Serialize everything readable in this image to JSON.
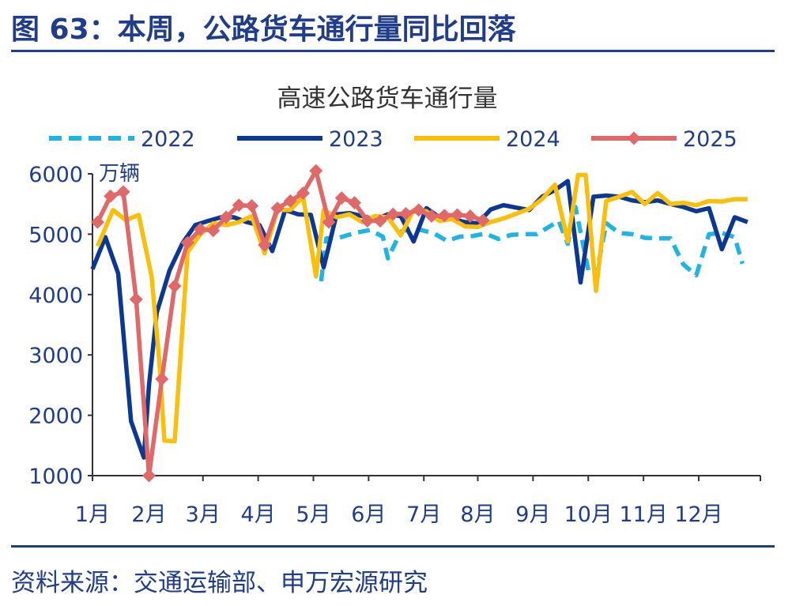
{
  "figure": {
    "title": "图 63：本周，公路货车通行量同比回落",
    "source": "资料来源：交通运输部、申万宏源研究"
  },
  "colors": {
    "frame": "#1f3d8c",
    "axis_text": "#1f3d8c",
    "s2022": "#1fb4e6",
    "s2023": "#0b3893",
    "s2024": "#fbbf0a",
    "s2025": "#e06868"
  },
  "chart_data": {
    "type": "line",
    "title": "高速公路货车通行量",
    "unit_label": "万辆",
    "xlabel": "",
    "ylabel": "",
    "ylim": [
      1000,
      6000
    ],
    "yticks": [
      1000,
      2000,
      3000,
      4000,
      5000,
      6000
    ],
    "xlim": [
      0,
      52
    ],
    "month_labels": [
      "1月",
      "2月",
      "3月",
      "4月",
      "5月",
      "6月",
      "7月",
      "8月",
      "9月",
      "10月",
      "11月",
      "12月"
    ],
    "month_positions": [
      0,
      4.4,
      8.6,
      12.9,
      17.2,
      21.5,
      25.8,
      30.0,
      34.3,
      38.6,
      42.9,
      47.2
    ],
    "grid": false,
    "legend_position": "top",
    "series": [
      {
        "name": "2022",
        "style": "dashed",
        "x": [
          17.8,
          18.2,
          19.2,
          20.4,
          21.6,
          22.6,
          23.0,
          24.0,
          24.6,
          25.6,
          26.6,
          27.6,
          28.6,
          29.6,
          30.6,
          31.6,
          32.6,
          33.6,
          34.6,
          35.6,
          36.3,
          37.0,
          37.6,
          38.6,
          39.2,
          40.0,
          41.0,
          42.0,
          43.0,
          44.0,
          45.0,
          46.0,
          47.0,
          48.0,
          49.0,
          50.0,
          50.6
        ],
        "y": [
          4220,
          4930,
          4940,
          5020,
          5070,
          4960,
          4600,
          5040,
          5080,
          5070,
          5010,
          4890,
          4960,
          4970,
          5010,
          4920,
          4990,
          5000,
          5000,
          5130,
          5220,
          4840,
          5450,
          4400,
          4300,
          5180,
          5020,
          5000,
          4940,
          4930,
          4930,
          4500,
          4320,
          5000,
          5020,
          4950,
          4510
        ]
      },
      {
        "name": "2023",
        "x": [
          0,
          1,
          2,
          3,
          4,
          4.4,
          5,
          6,
          7,
          8,
          9,
          10,
          11,
          12,
          13,
          14,
          15,
          16,
          17,
          18,
          19,
          20,
          21,
          22,
          23,
          24,
          25,
          26,
          27,
          28,
          29,
          30,
          31,
          32,
          33,
          34,
          35,
          36,
          37,
          38,
          39,
          40,
          41,
          42,
          43,
          44,
          45,
          46,
          47,
          48,
          49,
          50,
          51
        ],
        "y": [
          4420,
          4950,
          4350,
          1900,
          1300,
          2500,
          3700,
          4400,
          4850,
          5150,
          5220,
          5280,
          5280,
          5200,
          5150,
          4720,
          5400,
          5330,
          5320,
          4450,
          5330,
          5350,
          5300,
          5240,
          5330,
          5300,
          4880,
          5430,
          5280,
          5250,
          5200,
          5180,
          5410,
          5480,
          5440,
          5400,
          5620,
          5730,
          5880,
          4200,
          5620,
          5640,
          5620,
          5560,
          5530,
          5560,
          5500,
          5450,
          5380,
          5430,
          4750,
          5280,
          5200
        ]
      },
      {
        "name": "2024",
        "x": [
          0.4,
          1.6,
          2.6,
          3.6,
          4.6,
          5.2,
          5.6,
          6.4,
          7.4,
          8.4,
          9.4,
          10.4,
          11.4,
          12.4,
          13.4,
          14.4,
          15.4,
          16.4,
          17.4,
          18.0,
          19.0,
          20.0,
          21.0,
          22.0,
          23.0,
          24.0,
          25.0,
          26.0,
          27.0,
          28.0,
          29.0,
          30.0,
          31.0,
          32.0,
          33.0,
          34.0,
          35.0,
          36.0,
          37.0,
          37.8,
          38.4,
          39.2,
          40.0,
          41.0,
          42.0,
          43.0,
          44.0,
          45.0,
          46.0,
          47.0,
          48.0,
          49.0,
          50.0,
          51.0
        ],
        "y": [
          4800,
          5400,
          5230,
          5320,
          4300,
          2900,
          1580,
          1570,
          4700,
          5000,
          5180,
          5150,
          5200,
          5300,
          4680,
          5400,
          5400,
          5620,
          4300,
          5400,
          5280,
          5330,
          5200,
          5300,
          5280,
          4980,
          5400,
          5380,
          5220,
          5250,
          5130,
          5120,
          5200,
          5260,
          5340,
          5420,
          5580,
          5820,
          4880,
          5980,
          5980,
          4060,
          5550,
          5620,
          5700,
          5500,
          5680,
          5500,
          5520,
          5480,
          5550,
          5540,
          5580,
          5580
        ]
      },
      {
        "name": "2025",
        "marker": "diamond",
        "x": [
          0.4,
          1.4,
          2.4,
          3.4,
          4.4,
          5.4,
          6.4,
          7.4,
          8.4,
          9.4,
          10.4,
          11.4,
          12.4,
          13.4,
          14.4,
          15.4,
          16.4,
          17.4,
          18.4,
          19.4,
          20.4,
          21.4,
          22.4,
          23.4,
          24.4,
          25.4,
          26.4,
          27.4,
          28.4,
          29.4,
          30.4
        ],
        "y": [
          5200,
          5630,
          5700,
          3920,
          1000,
          2600,
          4140,
          4860,
          5080,
          5060,
          5280,
          5480,
          5470,
          4820,
          5430,
          5550,
          5680,
          6050,
          5200,
          5600,
          5520,
          5220,
          5220,
          5330,
          5340,
          5400,
          5300,
          5310,
          5320,
          5300,
          5230
        ]
      }
    ]
  }
}
